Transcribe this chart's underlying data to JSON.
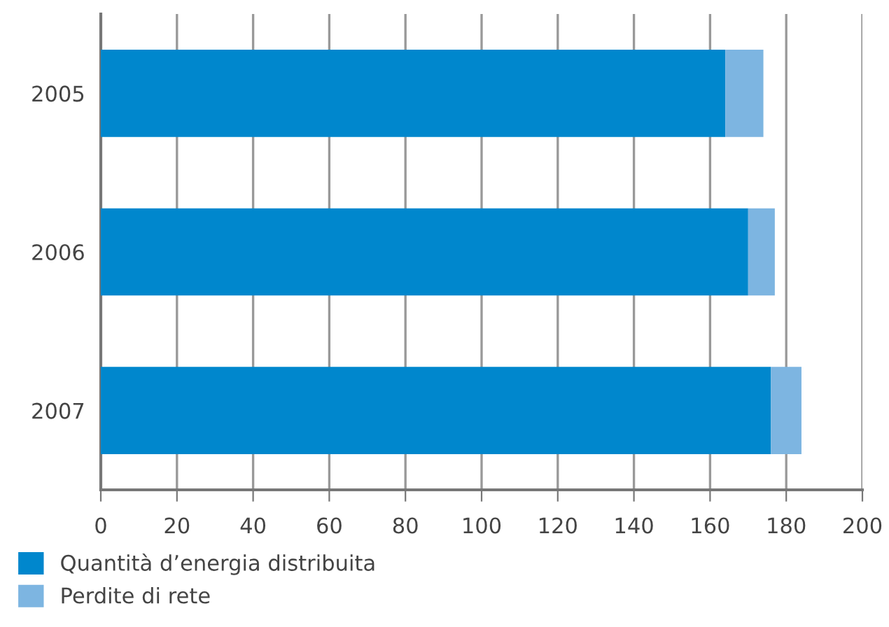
{
  "chart_data": {
    "type": "bar",
    "orientation": "horizontal",
    "stacked": true,
    "categories": [
      "2005",
      "2006",
      "2007"
    ],
    "series": [
      {
        "name": "Quantità d’energia distribuita",
        "color": "#0087cd",
        "values": [
          164,
          170,
          176
        ]
      },
      {
        "name": "Perdite di rete",
        "color": "#7db5e1",
        "values": [
          10,
          7,
          8
        ]
      }
    ],
    "xlim": [
      0,
      200
    ],
    "xticks": [
      0,
      20,
      40,
      60,
      80,
      100,
      120,
      140,
      160,
      180,
      200
    ],
    "grid": "x",
    "legend": "bottom"
  }
}
